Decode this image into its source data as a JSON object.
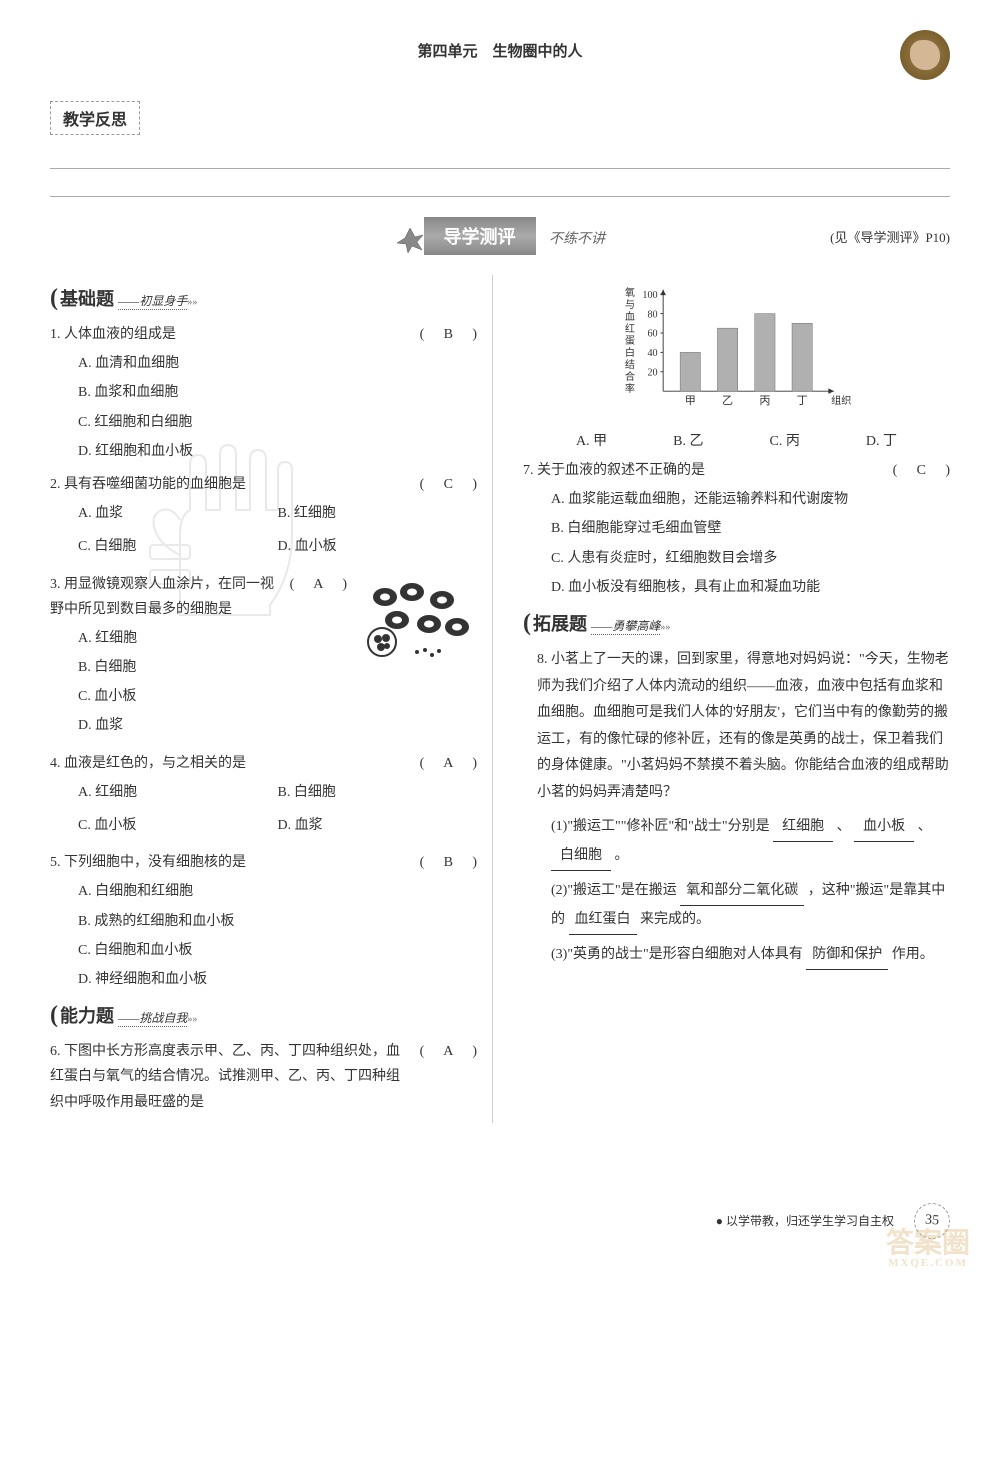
{
  "header": {
    "title": "第四单元　生物圈中的人"
  },
  "reflection": {
    "label": "教学反思"
  },
  "assess": {
    "title": "导学测评",
    "subtitle": "不练不讲",
    "ref": "(见《导学测评》P10)"
  },
  "sections": {
    "basic": {
      "main": "基础题",
      "sub": "——初显身手"
    },
    "ability": {
      "main": "能力题",
      "sub": "——挑战自我"
    },
    "extend": {
      "main": "拓展题",
      "sub": "——勇攀高峰"
    }
  },
  "q1": {
    "stem": "1. 人体血液的组成是",
    "answer": "B",
    "opts": {
      "a": "A. 血清和血细胞",
      "b": "B. 血浆和血细胞",
      "c": "C. 红细胞和白细胞",
      "d": "D. 红细胞和血小板"
    }
  },
  "q2": {
    "stem": "2. 具有吞噬细菌功能的血细胞是",
    "answer": "C",
    "opts": {
      "a": "A. 血浆",
      "b": "B. 红细胞",
      "c": "C. 白细胞",
      "d": "D. 血小板"
    }
  },
  "q3": {
    "stem": "3. 用显微镜观察人血涂片，在同一视野中所见到数目最多的细胞是",
    "answer": "A",
    "opts": {
      "a": "A. 红细胞",
      "b": "B. 白细胞",
      "c": "C. 血小板",
      "d": "D. 血浆"
    }
  },
  "q4": {
    "stem": "4. 血液是红色的，与之相关的是",
    "answer": "A",
    "opts": {
      "a": "A. 红细胞",
      "b": "B. 白细胞",
      "c": "C. 血小板",
      "d": "D. 血浆"
    }
  },
  "q5": {
    "stem": "5. 下列细胞中，没有细胞核的是",
    "answer": "B",
    "opts": {
      "a": "A. 白细胞和红细胞",
      "b": "B. 成熟的红细胞和血小板",
      "c": "C. 白细胞和血小板",
      "d": "D. 神经细胞和血小板"
    }
  },
  "q6": {
    "stem": "6. 下图中长方形高度表示甲、乙、丙、丁四种组织处，血红蛋白与氧气的结合情况。试推测甲、乙、丙、丁四种组织中呼吸作用最旺盛的是",
    "answer": "A",
    "opts": {
      "a": "A. 甲",
      "b": "B. 乙",
      "c": "C. 丙",
      "d": "D. 丁"
    }
  },
  "chart": {
    "ylabel": "氧与血红蛋白结合率",
    "xlabel": "组织",
    "ymax": 100,
    "ticks": [
      20,
      40,
      60,
      80,
      100
    ],
    "bars": [
      {
        "label": "甲",
        "value": 40
      },
      {
        "label": "乙",
        "value": 65
      },
      {
        "label": "丙",
        "value": 80
      },
      {
        "label": "丁",
        "value": 70
      }
    ],
    "bar_color": "#b0b0b0",
    "axis_color": "#333333"
  },
  "q7": {
    "stem": "7. 关于血液的叙述不正确的是",
    "answer": "C",
    "opts": {
      "a": "A. 血浆能运载血细胞，还能运输养料和代谢废物",
      "b": "B. 白细胞能穿过毛细血管壁",
      "c": "C. 人患有炎症时，红细胞数目会增多",
      "d": "D. 血小板没有细胞核，具有止血和凝血功能"
    }
  },
  "q8": {
    "stem": "8. 小茗上了一天的课，回到家里，得意地对妈妈说：\"今天，生物老师为我们介绍了人体内流动的组织——血液，血液中包括有血浆和血细胞。血细胞可是我们人体的'好朋友'，它们当中有的像勤劳的搬运工，有的像忙碌的修补匠，还有的像是英勇的战士，保卫着我们的身体健康。\"小茗妈妈不禁摸不着头脑。你能结合血液的组成帮助小茗的妈妈弄清楚吗？",
    "sub1": {
      "text_a": "(1)\"搬运工\"\"修补匠\"和\"战士\"分别是",
      "ans1": "红细胞",
      "sep1": "、",
      "ans2": "血小板",
      "sep2": "、",
      "ans3": "白细胞",
      "end": "。"
    },
    "sub2": {
      "text_a": "(2)\"搬运工\"是在搬运",
      "ans1": "氧和部分二氧化碳",
      "text_b": "，这种\"搬运\"是靠其中的",
      "ans2": "血红蛋白",
      "text_c": "来完成的。"
    },
    "sub3": {
      "text_a": "(3)\"英勇的战士\"是形容白细胞对人体具有",
      "ans1": "防御和保护",
      "text_b": "作用。"
    }
  },
  "footer": {
    "text": "● 以学带教，归还学生学习自主权",
    "page": "35"
  },
  "watermark": {
    "main": "答案圈",
    "sub": "MXQE.COM"
  }
}
